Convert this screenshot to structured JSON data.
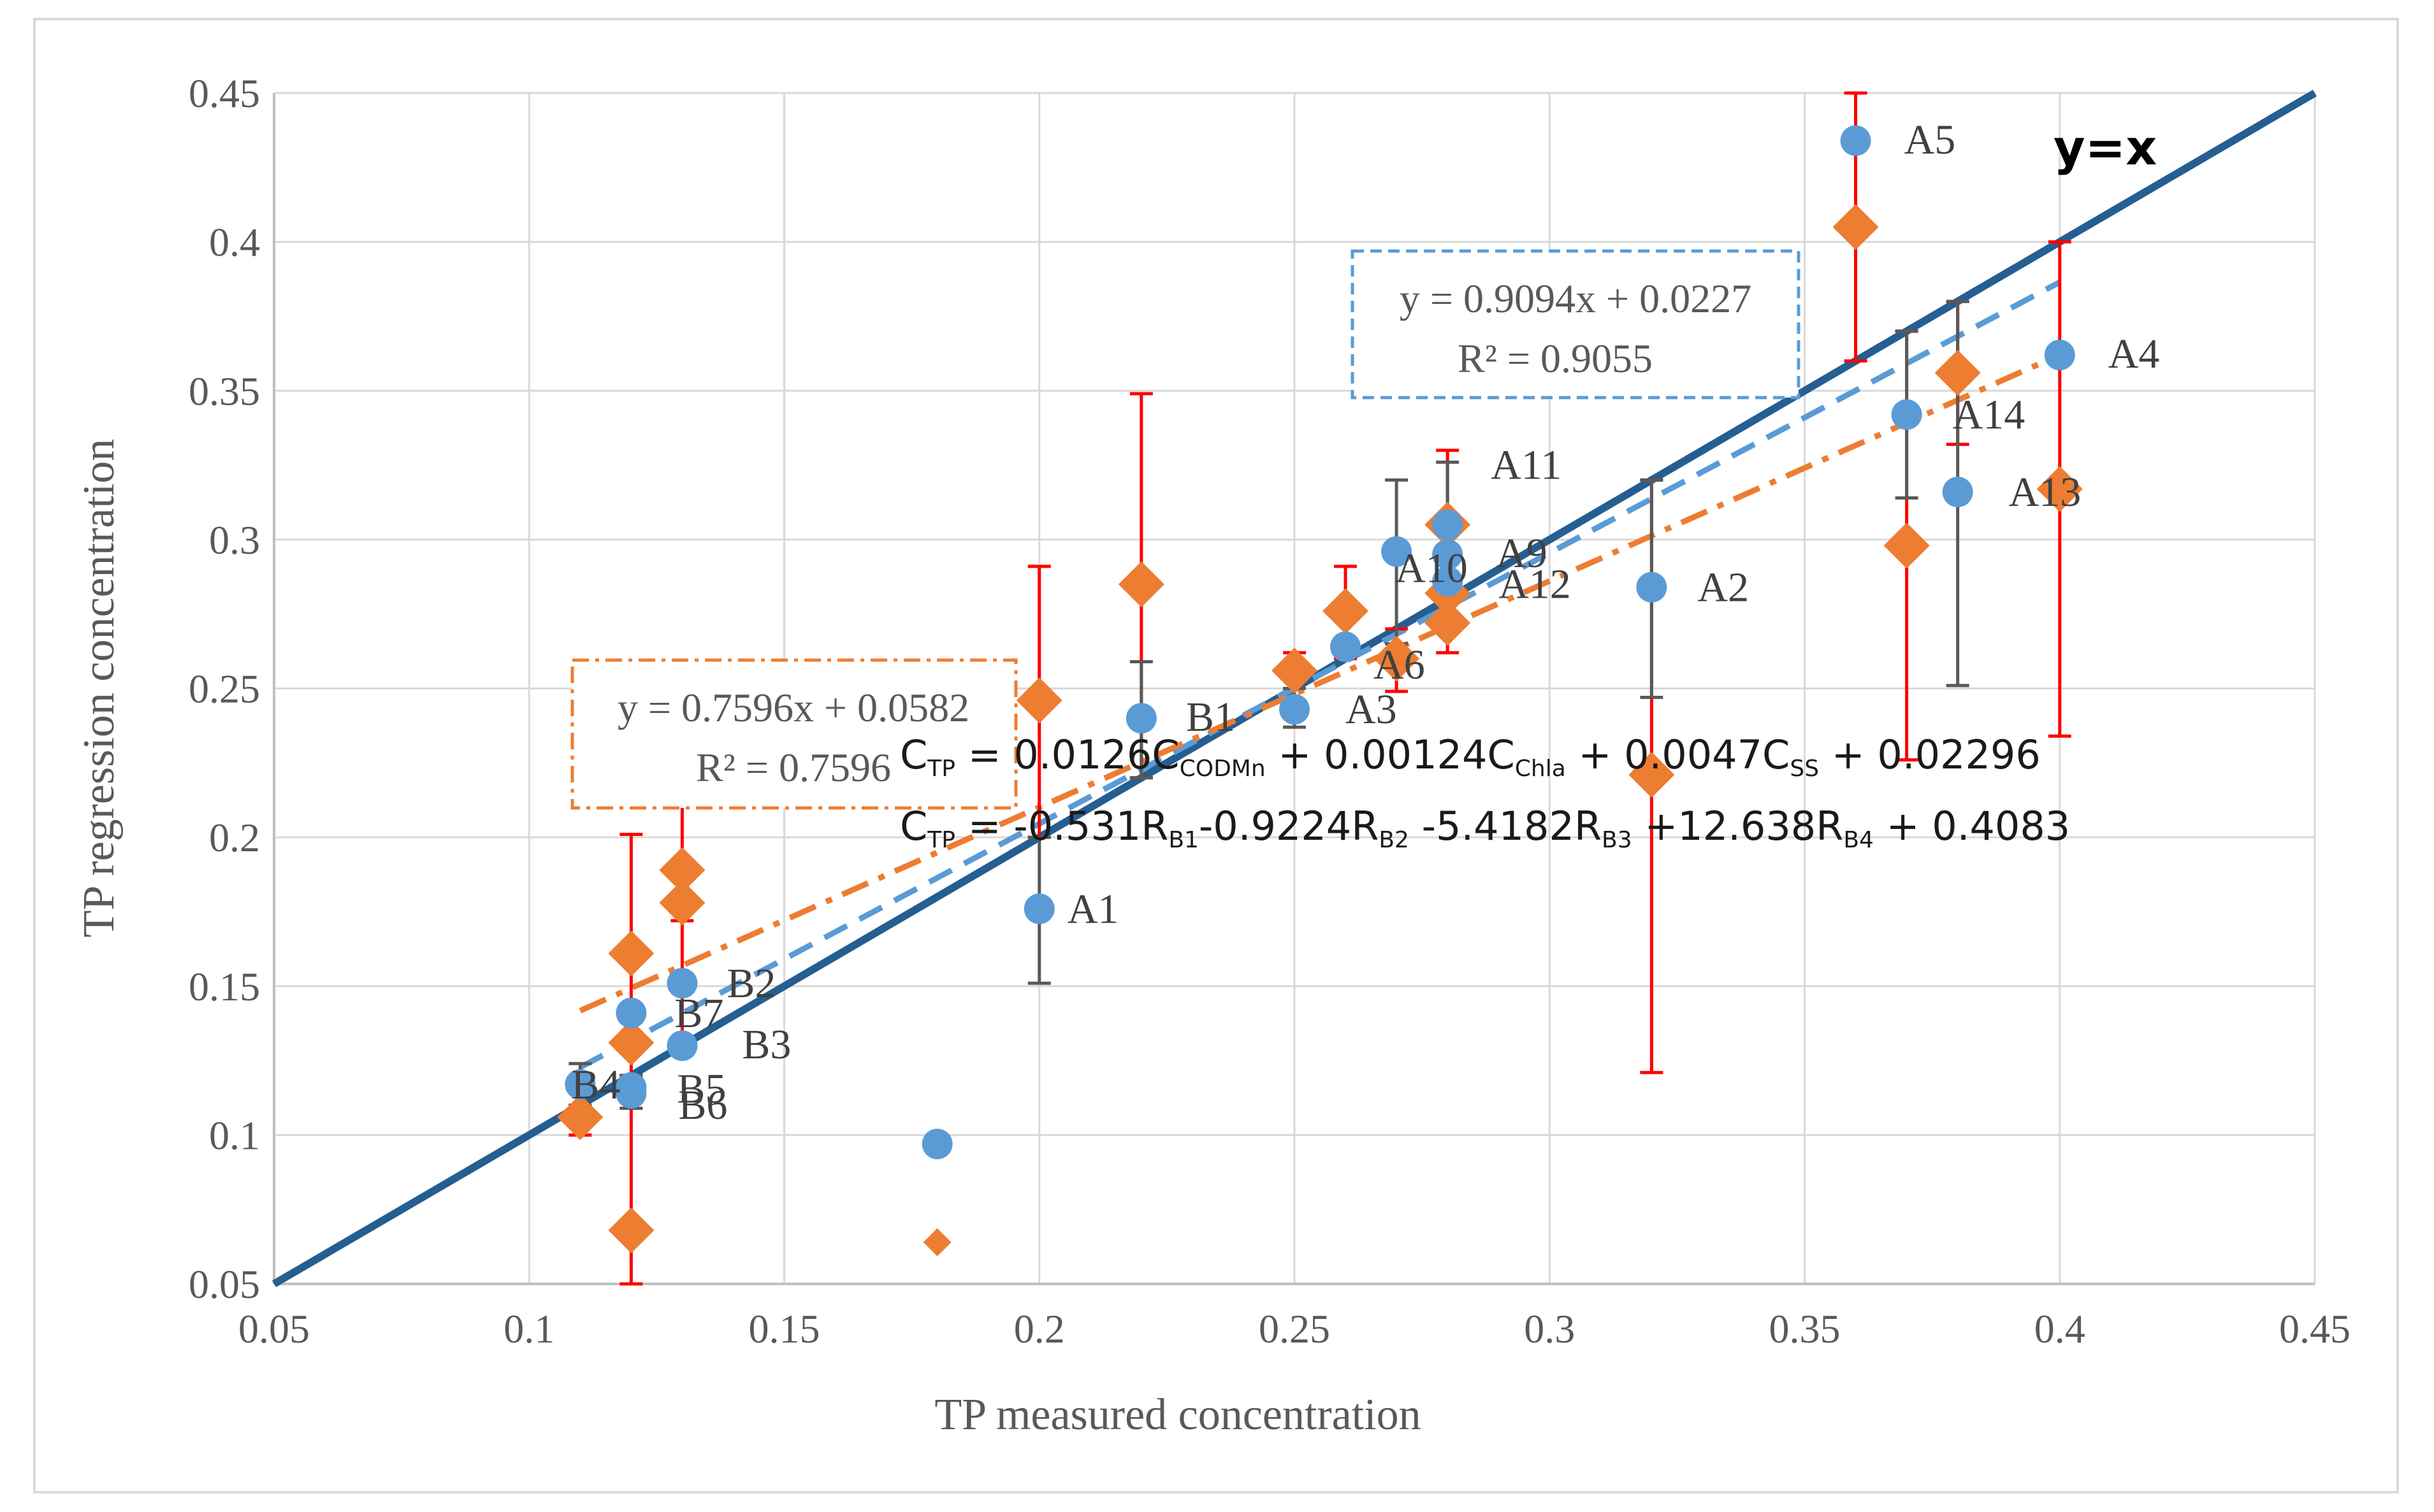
{
  "chart_data": {
    "type": "scatter",
    "xlabel": "TP measured concentration",
    "ylabel": "TP regression concentration",
    "xlim": [
      0.05,
      0.45
    ],
    "ylim": [
      0.05,
      0.45
    ],
    "x_ticks": [
      "0.05",
      "0.1",
      "0.15",
      "0.2",
      "0.25",
      "0.3",
      "0.35",
      "0.4",
      "0.45"
    ],
    "y_ticks": [
      "0.05",
      "0.1",
      "0.15",
      "0.2",
      "0.25",
      "0.3",
      "0.35",
      "0.4",
      "0.45"
    ],
    "grid": true,
    "colors": {
      "blue_points": "#5b9bd5",
      "orange_points": "#ed7d31",
      "identity_line": "#255e91",
      "error_red": "#ff0000",
      "error_dark": "#595959"
    },
    "identity_line": {
      "label": "y=x",
      "slope": 1,
      "intercept": 0
    },
    "trendlines": [
      {
        "name": "blue-trend",
        "slope": 0.9094,
        "intercept": 0.0227,
        "x_range": [
          0.11,
          0.4
        ],
        "equation": "y = 0.9094x + 0.0227",
        "r2": "R² = 0.9055",
        "color": "#5b9bd5"
      },
      {
        "name": "orange-trend",
        "slope": 0.7596,
        "intercept": 0.0582,
        "x_range": [
          0.11,
          0.4
        ],
        "equation": "y = 0.7596x + 0.0582",
        "r2": "R² = 0.7596",
        "color": "#ed7d31"
      }
    ],
    "series": [
      {
        "name": "blue",
        "marker": "circle",
        "points": [
          {
            "label": "A1",
            "x": 0.2,
            "y": 0.176,
            "err_lo": 0.151,
            "err_hi": 0.2
          },
          {
            "label": "A2",
            "x": 0.32,
            "y": 0.284,
            "err_lo": 0.247,
            "err_hi": 0.32
          },
          {
            "label": "A3",
            "x": 0.25,
            "y": 0.243,
            "err_lo": 0.237,
            "err_hi": 0.25
          },
          {
            "label": "A4",
            "x": 0.4,
            "y": 0.362
          },
          {
            "label": "A5",
            "x": 0.36,
            "y": 0.434
          },
          {
            "label": "A6",
            "x": 0.26,
            "y": 0.264
          },
          {
            "label": "A9",
            "x": 0.28,
            "y": 0.295,
            "err_lo": 0.285,
            "err_hi": 0.326
          },
          {
            "label": "A10",
            "x": 0.27,
            "y": 0.296,
            "err_lo": 0.265,
            "err_hi": 0.32
          },
          {
            "label": "A11",
            "x": 0.28,
            "y": 0.305
          },
          {
            "label": "A12",
            "x": 0.28,
            "y": 0.286
          },
          {
            "label": "A13",
            "x": 0.38,
            "y": 0.316,
            "err_lo": 0.251,
            "err_hi": 0.38
          },
          {
            "label": "A14",
            "x": 0.37,
            "y": 0.342,
            "err_lo": 0.314,
            "err_hi": 0.37
          },
          {
            "label": "B1",
            "x": 0.22,
            "y": 0.24,
            "err_lo": 0.22,
            "err_hi": 0.259
          },
          {
            "label": "B2",
            "x": 0.13,
            "y": 0.151
          },
          {
            "label": "B3",
            "x": 0.13,
            "y": 0.13
          },
          {
            "label": "B4",
            "x": 0.11,
            "y": 0.117,
            "err_lo": 0.11,
            "err_hi": 0.124
          },
          {
            "label": "B5",
            "x": 0.12,
            "y": 0.116,
            "err_lo": 0.109,
            "err_hi": 0.12
          },
          {
            "label": "B6",
            "x": 0.12,
            "y": 0.114
          },
          {
            "label": "B7",
            "x": 0.12,
            "y": 0.141
          },
          {
            "label": "",
            "x": 0.18,
            "y": 0.097
          }
        ]
      },
      {
        "name": "orange",
        "marker": "diamond",
        "points": [
          {
            "x": 0.2,
            "y": 0.246,
            "err_lo": 0.2,
            "err_hi": 0.291
          },
          {
            "x": 0.22,
            "y": 0.285,
            "err_lo": 0.22,
            "err_hi": 0.349
          },
          {
            "x": 0.25,
            "y": 0.256,
            "err_lo": 0.25,
            "err_hi": 0.262
          },
          {
            "x": 0.26,
            "y": 0.276,
            "err_lo": 0.26,
            "err_hi": 0.291
          },
          {
            "x": 0.27,
            "y": 0.26,
            "err_lo": 0.249,
            "err_hi": 0.27
          },
          {
            "x": 0.28,
            "y": 0.305,
            "err_lo": 0.28,
            "err_hi": 0.33
          },
          {
            "x": 0.28,
            "y": 0.282,
            "err_lo": 0.262,
            "err_hi": 0.28
          },
          {
            "x": 0.28,
            "y": 0.272
          },
          {
            "x": 0.32,
            "y": 0.221,
            "err_lo": 0.121,
            "err_hi": 0.32
          },
          {
            "x": 0.36,
            "y": 0.405,
            "err_lo": 0.36,
            "err_hi": 0.45
          },
          {
            "x": 0.37,
            "y": 0.298,
            "err_lo": 0.226,
            "err_hi": 0.37
          },
          {
            "x": 0.38,
            "y": 0.356,
            "err_lo": 0.332,
            "err_hi": 0.38
          },
          {
            "x": 0.4,
            "y": 0.317,
            "err_lo": 0.234,
            "err_hi": 0.4
          },
          {
            "x": 0.13,
            "y": 0.189,
            "err_lo": 0.13,
            "err_hi": 0.224
          },
          {
            "x": 0.13,
            "y": 0.178,
            "err_lo": 0.172,
            "err_hi": 0.178
          },
          {
            "x": 0.12,
            "y": 0.161,
            "err_lo": 0.12,
            "err_hi": 0.201
          },
          {
            "x": 0.12,
            "y": 0.131
          },
          {
            "x": 0.12,
            "y": 0.068,
            "err_lo": 0.05,
            "err_hi": 0.12
          },
          {
            "x": 0.11,
            "y": 0.106,
            "err_lo": 0.1,
            "err_hi": 0.11
          },
          {
            "x": 0.18,
            "y": 0.064
          }
        ]
      }
    ]
  },
  "annotations": {
    "blue_eq": "y = 0.9094x + 0.0227",
    "blue_r2": "R² = 0.9055",
    "orange_eq": "y = 0.7596x + 0.0582",
    "orange_r2": "R² = 0.7596",
    "formula1": {
      "parts": [
        "C",
        "TP",
        " = 0.0126C",
        "CODMn",
        " + 0.00124C",
        "Chla",
        " + 0.0047C",
        "SS",
        " + 0.02296"
      ]
    },
    "formula2": {
      "parts": [
        "C",
        "TP",
        " = -0.531R",
        "B1",
        "-0.9224R",
        "B2",
        " -5.4182R",
        "B3",
        " +12.638R",
        "B4",
        " + 0.4083"
      ]
    },
    "identity_label": "y=x"
  }
}
